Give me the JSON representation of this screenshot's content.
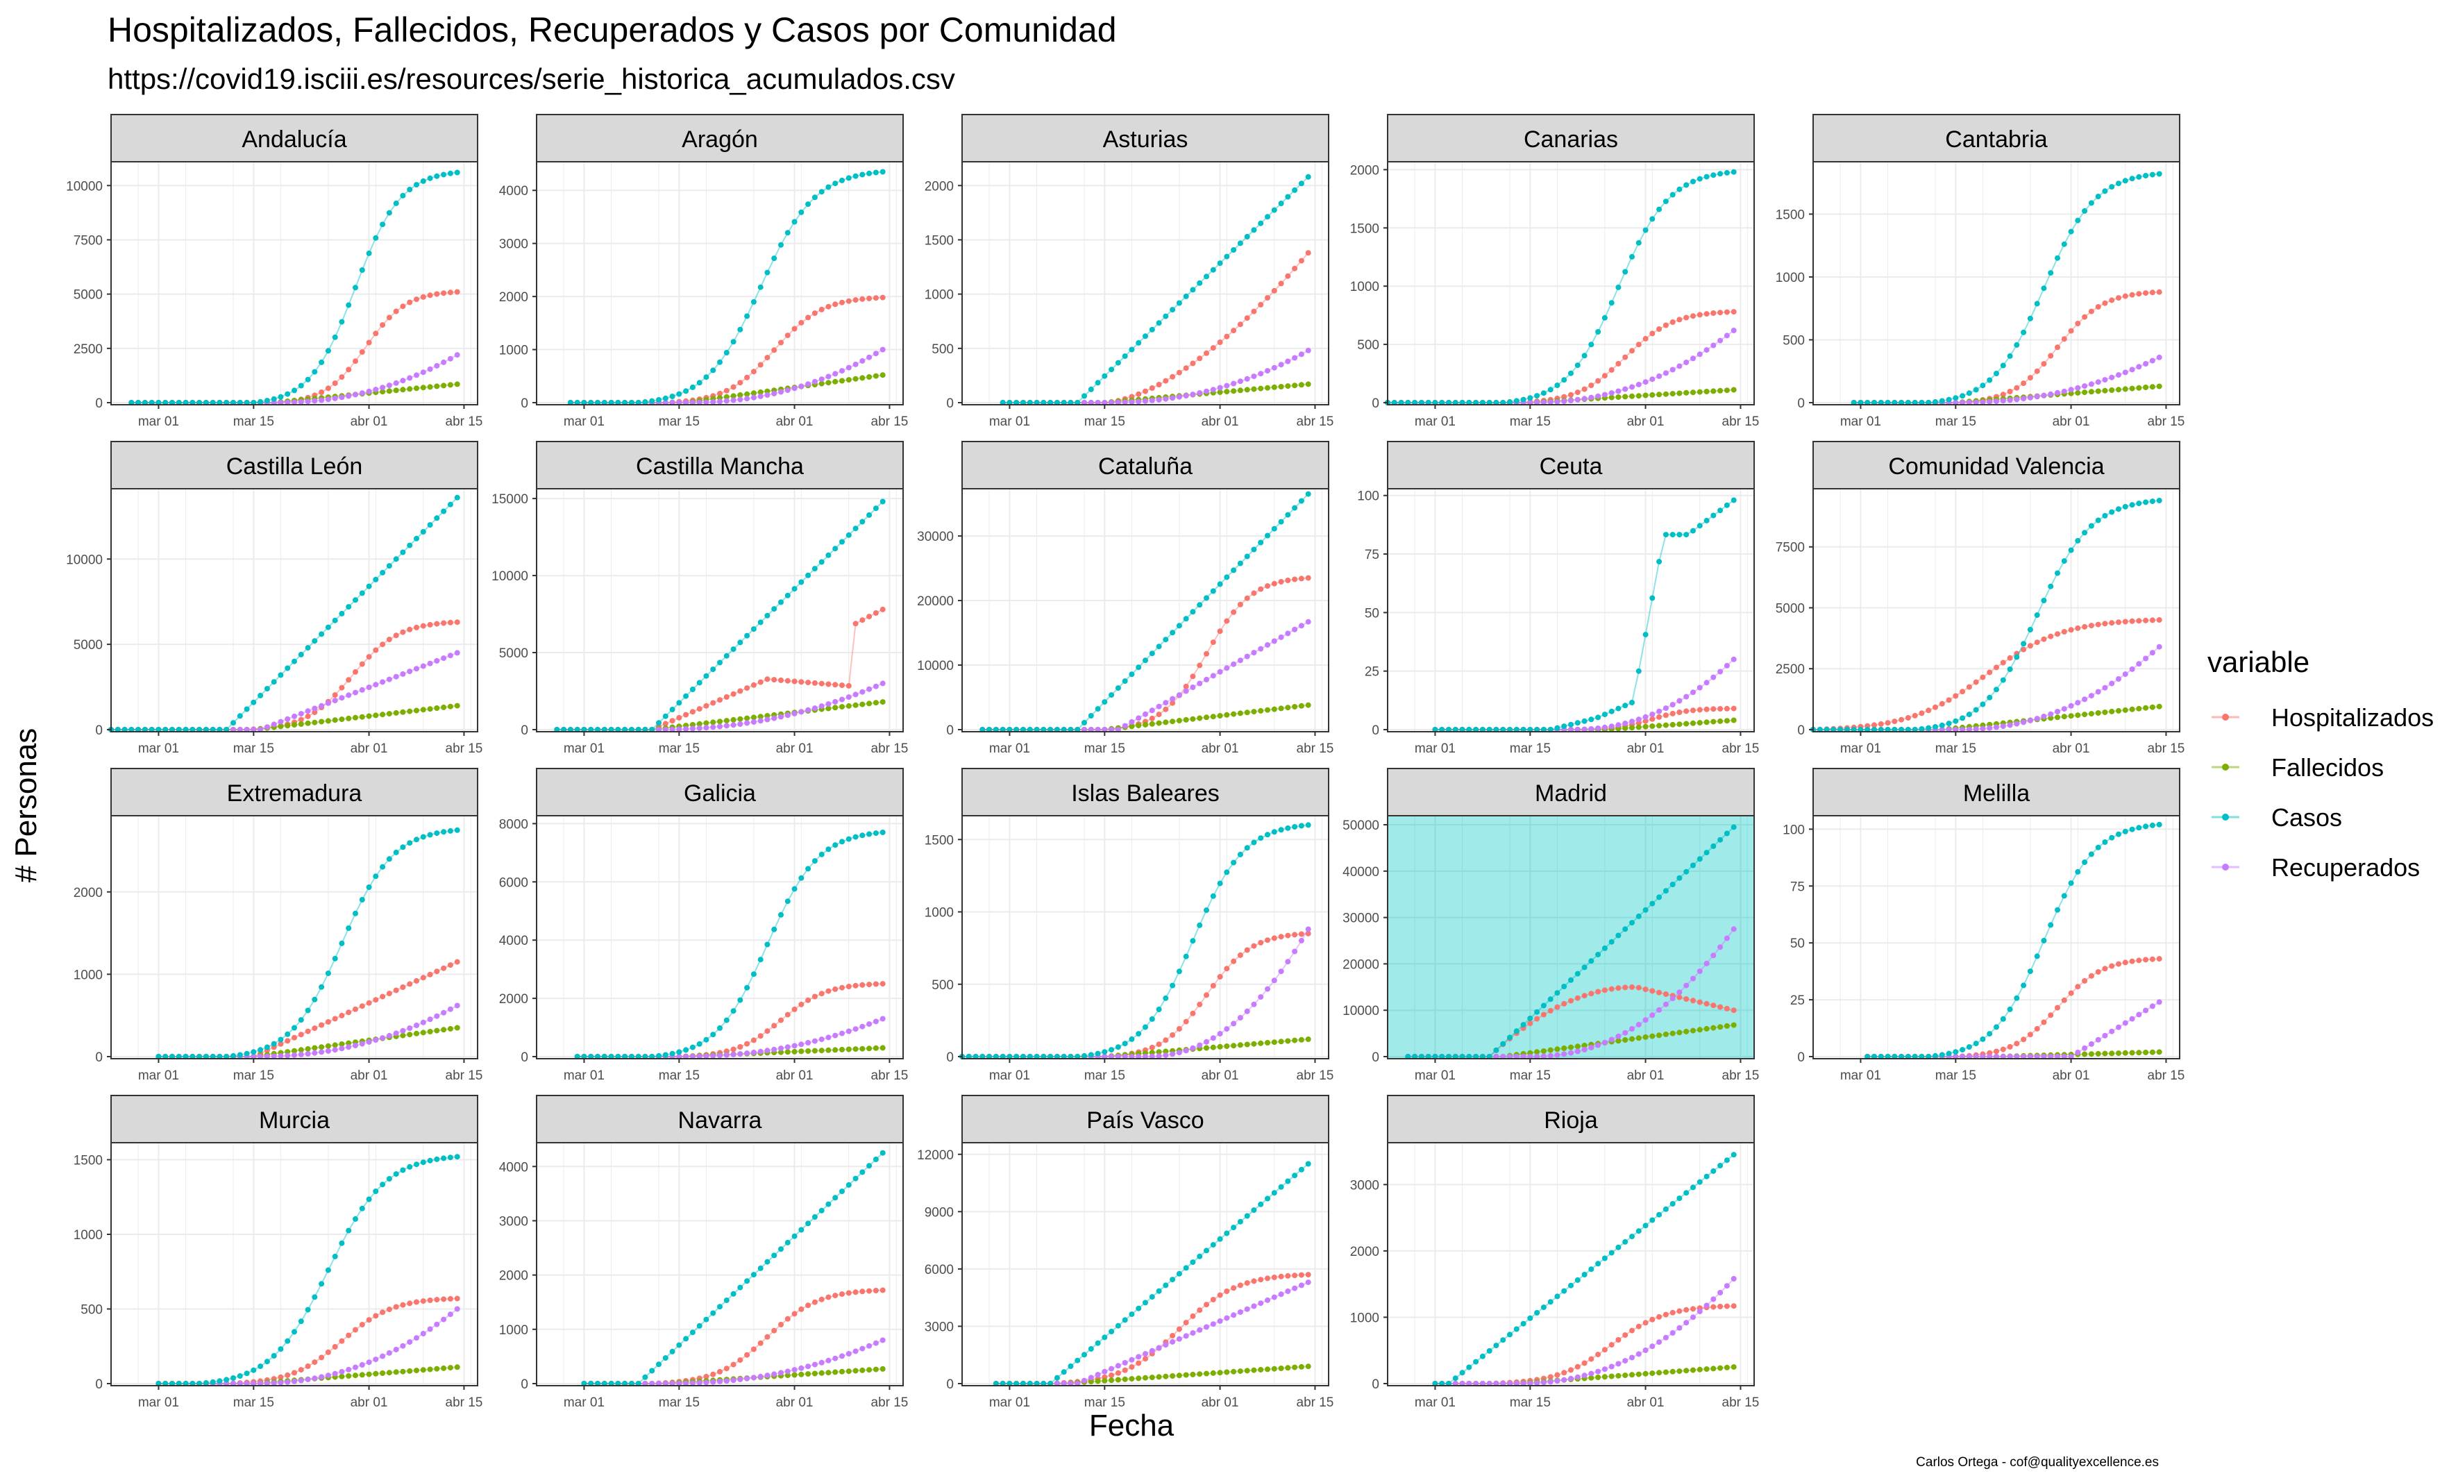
{
  "title": "Hospitalizados, Fallecidos, Recuperados y Casos por Comunidad",
  "subtitle": "https://covid19.isciii.es/resources/serie_historica_acumulados.csv",
  "xlabel": "Fecha",
  "ylabel": "# Personas",
  "caption": "Carlos Ortega - cof@qualityexcellence.es",
  "legend": {
    "title": "variable",
    "placement": "right",
    "items": [
      {
        "name": "Hospitalizados",
        "color": "#F8766D"
      },
      {
        "name": "Fallecidos",
        "color": "#7CAE00"
      },
      {
        "name": "Casos",
        "color": "#00BFC4"
      },
      {
        "name": "Recuperados",
        "color": "#C77CFF"
      }
    ]
  },
  "chart_data": {
    "type": "scatter",
    "connected_lines": true,
    "grid": true,
    "facet_layout": "5 columns x 4 rows",
    "highlight": {
      "panel": "Madrid",
      "background": "#A0EAEA"
    },
    "x_day_offset_labels": [
      "mar 01",
      "mar 15",
      "abr 01",
      "abr 15"
    ],
    "x_ticks": [
      {
        "label": "mar 01",
        "day": 0
      },
      {
        "label": "mar 15",
        "day": 14
      },
      {
        "label": "abr 01",
        "day": 31
      },
      {
        "label": "abr 15",
        "day": 45
      }
    ],
    "x_range_days": [
      -7,
      47
    ],
    "colors": {
      "Hospitalizados": "#F8766D",
      "Fallecidos": "#7CAE00",
      "Casos": "#00BFC4",
      "Recuperados": "#C77CFF"
    },
    "facets": [
      {
        "name": "Andalucía",
        "ylim": [
          0,
          11000
        ],
        "yticks": [
          0,
          2500,
          5000,
          7500,
          10000
        ],
        "yticklabels": [
          "0",
          "2500",
          "5000",
          "7500",
          "10000"
        ],
        "start": -4,
        "end": 44,
        "series": {
          "Casos": {
            "start": 14,
            "final": 10600,
            "shape": "s"
          },
          "Hospitalizados": {
            "start": 17,
            "final": 5100,
            "shape": "s"
          },
          "Recuperados": {
            "start": 17,
            "final": 2200,
            "shape": "late"
          },
          "Fallecidos": {
            "start": 17,
            "final": 850,
            "shape": "lin"
          }
        }
      },
      {
        "name": "Aragón",
        "ylim": [
          0,
          4500
        ],
        "yticks": [
          0,
          1000,
          2000,
          3000,
          4000
        ],
        "yticklabels": [
          "0",
          "1000",
          "2000",
          "3000",
          "4000"
        ],
        "start": -2,
        "end": 44,
        "series": {
          "Casos": {
            "start": 8,
            "final": 4350,
            "shape": "s"
          },
          "Hospitalizados": {
            "start": 12,
            "final": 1980,
            "shape": "s"
          },
          "Recuperados": {
            "start": 15,
            "final": 1000,
            "shape": "late"
          },
          "Fallecidos": {
            "start": 15,
            "final": 520,
            "shape": "lin"
          }
        }
      },
      {
        "name": "Asturias",
        "ylim": [
          0,
          2200
        ],
        "yticks": [
          0,
          500,
          1000,
          1500,
          2000
        ],
        "yticklabels": [
          "0",
          "500",
          "1000",
          "1500",
          "2000"
        ],
        "start": -1,
        "end": 44,
        "series": {
          "Casos": {
            "start": 10,
            "final": 2080,
            "shape": "lin"
          },
          "Hospitalizados": {
            "start": 14,
            "final": 1380,
            "shape": "conv"
          },
          "Recuperados": {
            "start": 14,
            "final": 480,
            "shape": "late"
          },
          "Fallecidos": {
            "start": 14,
            "final": 170,
            "shape": "lin"
          }
        }
      },
      {
        "name": "Canarias",
        "ylim": [
          0,
          2050
        ],
        "yticks": [
          0,
          500,
          1000,
          1500,
          2000
        ],
        "yticklabels": [
          "0",
          "500",
          "1000",
          "1500",
          "2000"
        ],
        "start": -7,
        "end": 44,
        "series": {
          "Casos": {
            "start": 10,
            "final": 1980,
            "shape": "s"
          },
          "Hospitalizados": {
            "start": 12,
            "final": 780,
            "shape": "s"
          },
          "Recuperados": {
            "start": 14,
            "final": 620,
            "shape": "late"
          },
          "Fallecidos": {
            "start": 14,
            "final": 110,
            "shape": "lin"
          }
        }
      },
      {
        "name": "Cantabria",
        "ylim": [
          0,
          1900
        ],
        "yticks": [
          0,
          500,
          1000,
          1500
        ],
        "yticklabels": [
          "0",
          "500",
          "1000",
          "1500"
        ],
        "start": -1,
        "end": 44,
        "series": {
          "Casos": {
            "start": 10,
            "final": 1820,
            "shape": "s"
          },
          "Hospitalizados": {
            "start": 14,
            "final": 880,
            "shape": "s"
          },
          "Recuperados": {
            "start": 14,
            "final": 360,
            "shape": "late"
          },
          "Fallecidos": {
            "start": 14,
            "final": 130,
            "shape": "lin"
          }
        }
      },
      {
        "name": "Castilla León",
        "ylim": [
          0,
          14000
        ],
        "yticks": [
          0,
          5000,
          10000
        ],
        "yticklabels": [
          "0",
          "5000",
          "10000"
        ],
        "start": -7,
        "end": 44,
        "series": {
          "Casos": {
            "start": 10,
            "final": 13600,
            "shape": "lin"
          },
          "Hospitalizados": {
            "start": 13,
            "final": 6300,
            "shape": "s"
          },
          "Recuperados": {
            "start": 15,
            "final": 4500,
            "shape": "lin"
          },
          "Fallecidos": {
            "start": 14,
            "final": 1400,
            "shape": "lin"
          }
        }
      },
      {
        "name": "Castilla Mancha",
        "ylim": [
          0,
          15500
        ],
        "yticks": [
          0,
          5000,
          10000,
          15000
        ],
        "yticklabels": [
          "0",
          "5000",
          "10000",
          "15000"
        ],
        "start": -4,
        "end": 44,
        "series": {
          "Casos": {
            "start": 10,
            "final": 14800,
            "shape": "lin"
          },
          "Hospitalizados": {
            "start": 10,
            "final": 7800,
            "shape": "castilla"
          },
          "Recuperados": {
            "start": 10,
            "final": 3000,
            "shape": "late"
          },
          "Fallecidos": {
            "start": 10,
            "final": 1800,
            "shape": "lin"
          }
        }
      },
      {
        "name": "Cataluña",
        "ylim": [
          0,
          37000
        ],
        "yticks": [
          0,
          10000,
          20000,
          30000
        ],
        "yticklabels": [
          "0",
          "10000",
          "20000",
          "30000"
        ],
        "start": -4,
        "end": 44,
        "series": {
          "Casos": {
            "start": 10,
            "final": 36500,
            "shape": "lin"
          },
          "Hospitalizados": {
            "start": 14,
            "final": 23500,
            "shape": "s"
          },
          "Recuperados": {
            "start": 16,
            "final": 16700,
            "shape": "lin"
          },
          "Fallecidos": {
            "start": 14,
            "final": 3800,
            "shape": "lin"
          }
        }
      },
      {
        "name": "Ceuta",
        "ylim": [
          0,
          102
        ],
        "yticks": [
          0,
          25,
          50,
          75,
          100
        ],
        "yticklabels": [
          "0",
          "25",
          "50",
          "75",
          "100"
        ],
        "start": 0,
        "end": 44,
        "series": {
          "Casos": {
            "start": 17,
            "final": 98,
            "shape": "ceuta"
          },
          "Hospitalizados": {
            "start": 20,
            "final": 9,
            "shape": "s"
          },
          "Recuperados": {
            "start": 20,
            "final": 30,
            "shape": "late"
          },
          "Fallecidos": {
            "start": 25,
            "final": 4,
            "shape": "lin"
          }
        }
      },
      {
        "name": "Comunidad Valencia",
        "ylim": [
          0,
          9800
        ],
        "yticks": [
          0,
          2500,
          5000,
          7500
        ],
        "yticklabels": [
          "0",
          "2500",
          "5000",
          "7500"
        ],
        "start": -7,
        "end": 44,
        "series": {
          "Casos": {
            "start": 8,
            "final": 9400,
            "shape": "s"
          },
          "Hospitalizados": {
            "start": -7,
            "final": 4500,
            "shape": "s"
          },
          "Recuperados": {
            "start": 14,
            "final": 3400,
            "shape": "late"
          },
          "Fallecidos": {
            "start": 12,
            "final": 950,
            "shape": "lin"
          }
        }
      },
      {
        "name": "Extremadura",
        "ylim": [
          0,
          2900
        ],
        "yticks": [
          0,
          1000,
          2000
        ],
        "yticklabels": [
          "0",
          "1000",
          "2000"
        ],
        "start": 0,
        "end": 44,
        "series": {
          "Casos": {
            "start": 10,
            "final": 2750,
            "shape": "s"
          },
          "Hospitalizados": {
            "start": 14,
            "final": 1150,
            "shape": "lin"
          },
          "Recuperados": {
            "start": 14,
            "final": 620,
            "shape": "late"
          },
          "Fallecidos": {
            "start": 14,
            "final": 350,
            "shape": "lin"
          }
        }
      },
      {
        "name": "Galicia",
        "ylim": [
          0,
          8200
        ],
        "yticks": [
          0,
          2000,
          4000,
          6000,
          8000
        ],
        "yticklabels": [
          "0",
          "2000",
          "4000",
          "6000",
          "8000"
        ],
        "start": -1,
        "end": 44,
        "series": {
          "Casos": {
            "start": 10,
            "final": 7700,
            "shape": "s"
          },
          "Hospitalizados": {
            "start": 14,
            "final": 2500,
            "shape": "s"
          },
          "Recuperados": {
            "start": 14,
            "final": 1300,
            "shape": "late"
          },
          "Fallecidos": {
            "start": 14,
            "final": 300,
            "shape": "lin"
          }
        }
      },
      {
        "name": "Islas Baleares",
        "ylim": [
          0,
          1650
        ],
        "yticks": [
          0,
          500,
          1000,
          1500
        ],
        "yticklabels": [
          "0",
          "500",
          "1000",
          "1500"
        ],
        "start": -7,
        "end": 44,
        "series": {
          "Casos": {
            "start": 10,
            "final": 1600,
            "shape": "s"
          },
          "Hospitalizados": {
            "start": 14,
            "final": 850,
            "shape": "s"
          },
          "Recuperados": {
            "start": 20,
            "final": 880,
            "shape": "late"
          },
          "Fallecidos": {
            "start": 14,
            "final": 120,
            "shape": "lin"
          }
        }
      },
      {
        "name": "Madrid",
        "ylim": [
          0,
          51500
        ],
        "yticks": [
          0,
          10000,
          20000,
          30000,
          40000,
          50000
        ],
        "yticklabels": [
          "0",
          "10000",
          "20000",
          "30000",
          "40000",
          "50000"
        ],
        "start": -4,
        "end": 44,
        "series": {
          "Casos": {
            "start": 8,
            "final": 49500,
            "shape": "lin"
          },
          "Hospitalizados": {
            "start": 8,
            "final": 10000,
            "shape": "madrid"
          },
          "Recuperados": {
            "start": 14,
            "final": 27500,
            "shape": "late"
          },
          "Fallecidos": {
            "start": 10,
            "final": 6800,
            "shape": "lin"
          }
        }
      },
      {
        "name": "Melilla",
        "ylim": [
          0,
          105
        ],
        "yticks": [
          0,
          25,
          50,
          75,
          100
        ],
        "yticklabels": [
          "0",
          "25",
          "50",
          "75",
          "100"
        ],
        "start": 1,
        "end": 44,
        "series": {
          "Casos": {
            "start": 10,
            "final": 102,
            "shape": "s"
          },
          "Hospitalizados": {
            "start": 14,
            "final": 43,
            "shape": "s"
          },
          "Recuperados": {
            "start": 31,
            "final": 24,
            "shape": "lin"
          },
          "Fallecidos": {
            "start": 20,
            "final": 2,
            "shape": "lin"
          }
        }
      },
      {
        "name": "Murcia",
        "ylim": [
          0,
          1600
        ],
        "yticks": [
          0,
          500,
          1000,
          1500
        ],
        "yticklabels": [
          "0",
          "500",
          "1000",
          "1500"
        ],
        "start": 0,
        "end": 44,
        "series": {
          "Casos": {
            "start": 6,
            "final": 1520,
            "shape": "s"
          },
          "Hospitalizados": {
            "start": 10,
            "final": 570,
            "shape": "s"
          },
          "Recuperados": {
            "start": 14,
            "final": 500,
            "shape": "late"
          },
          "Fallecidos": {
            "start": 14,
            "final": 110,
            "shape": "lin"
          }
        }
      },
      {
        "name": "Navarra",
        "ylim": [
          0,
          4400
        ],
        "yticks": [
          0,
          1000,
          2000,
          3000,
          4000
        ],
        "yticklabels": [
          "0",
          "1000",
          "2000",
          "3000",
          "4000"
        ],
        "start": 0,
        "end": 44,
        "series": {
          "Casos": {
            "start": 8,
            "final": 4250,
            "shape": "lin"
          },
          "Hospitalizados": {
            "start": 10,
            "final": 1720,
            "shape": "s"
          },
          "Recuperados": {
            "start": 12,
            "final": 800,
            "shape": "late"
          },
          "Fallecidos": {
            "start": 12,
            "final": 270,
            "shape": "lin"
          }
        }
      },
      {
        "name": "País Vasco",
        "ylim": [
          0,
          12500
        ],
        "yticks": [
          0,
          3000,
          6000,
          9000,
          12000
        ],
        "yticklabels": [
          "0",
          "3000",
          "6000",
          "9000",
          "12000"
        ],
        "start": -2,
        "end": 44,
        "series": {
          "Casos": {
            "start": 6,
            "final": 11500,
            "shape": "lin"
          },
          "Hospitalizados": {
            "start": 6,
            "final": 5700,
            "shape": "s"
          },
          "Recuperados": {
            "start": 10,
            "final": 5300,
            "shape": "lin"
          },
          "Fallecidos": {
            "start": 8,
            "final": 900,
            "shape": "lin"
          }
        }
      },
      {
        "name": "Rioja",
        "ylim": [
          0,
          3600
        ],
        "yticks": [
          0,
          1000,
          2000,
          3000
        ],
        "yticklabels": [
          "0",
          "1000",
          "2000",
          "3000"
        ],
        "start": 0,
        "end": 44,
        "series": {
          "Casos": {
            "start": 2,
            "final": 3450,
            "shape": "lin"
          },
          "Hospitalizados": {
            "start": 8,
            "final": 1170,
            "shape": "s"
          },
          "Recuperados": {
            "start": 12,
            "final": 1580,
            "shape": "late"
          },
          "Fallecidos": {
            "start": 12,
            "final": 250,
            "shape": "lin"
          }
        }
      }
    ]
  }
}
